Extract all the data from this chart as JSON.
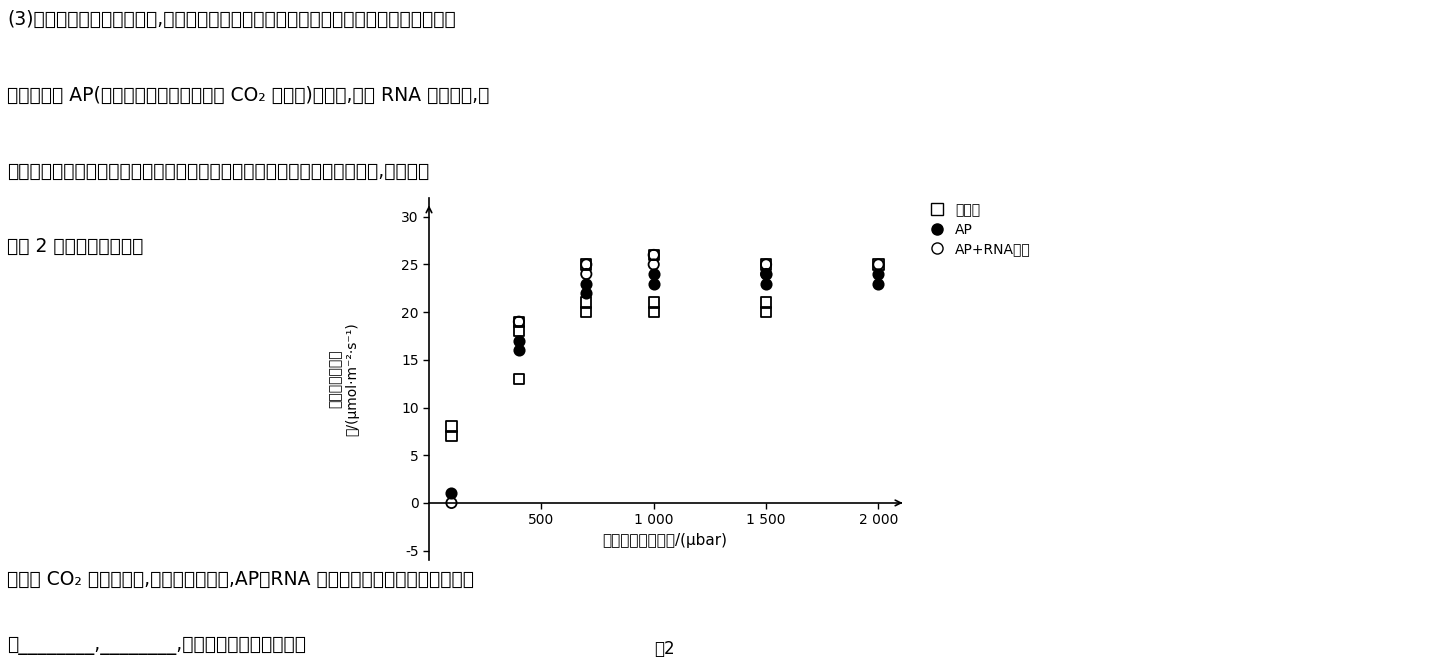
{
  "top_text_lines": [
    "(3)根据对光呼吸机理的研究,科研人员利用基因编辑手段设计了只在叶绿体中完成的光呼",
    "吸替代途径 AP(依然具有降解乙醇酸产生 CO₂ 的能力)。同时,利用 RNA 干扰技术,降",
    "低叶绿体膜上乙醇酸转运蛋白的表达量。检测三种不同类型植株的光合速率,实验结果",
    "如图 2 所示。据此回答："
  ],
  "xlabel": "胞间二氧化碳浓度/(μbar)",
  "ylabel_line1": "二氧化碳固化速",
  "ylabel_line2": "率/(μmol·m⁻²·s⁻¹)",
  "fig_label": "图2",
  "xlim": [
    0,
    2100
  ],
  "ylim": [
    -6,
    32
  ],
  "xticks": [
    500,
    1000,
    1500,
    2000
  ],
  "xtick_labels": [
    "500",
    "1 000",
    "1 500",
    "2 000"
  ],
  "yticks": [
    -5,
    0,
    5,
    10,
    15,
    20,
    25,
    30
  ],
  "legend_entries": [
    "野生型",
    "AP",
    "AP+RNA干扰"
  ],
  "wildtype_x": [
    100,
    100,
    400,
    400,
    400,
    700,
    700,
    700,
    1000,
    1000,
    1000,
    1500,
    1500,
    1500,
    2000
  ],
  "wildtype_y": [
    7,
    8,
    13,
    18,
    19,
    20,
    21,
    25,
    20,
    21,
    26,
    20,
    21,
    25,
    25
  ],
  "AP_x": [
    100,
    400,
    400,
    700,
    700,
    1000,
    1000,
    1500,
    1500,
    2000,
    2000
  ],
  "AP_y": [
    1,
    16,
    17,
    22,
    23,
    23,
    24,
    23,
    24,
    23,
    24
  ],
  "AP_RNA_x": [
    100,
    400,
    700,
    700,
    1000,
    1000,
    1500,
    1500,
    2000
  ],
  "AP_RNA_y": [
    0,
    19,
    24,
    25,
    25,
    26,
    24,
    25,
    25
  ],
  "bottom_text_lines": [
    "当胞间 CO₂ 浓度较高时,三种类型植株中,AP＋RNA 干扰型光合速率最高的原因可能",
    "是________,________,进而促进光合作用过程。"
  ],
  "bg_color": "#ffffff",
  "text_color": "#000000"
}
